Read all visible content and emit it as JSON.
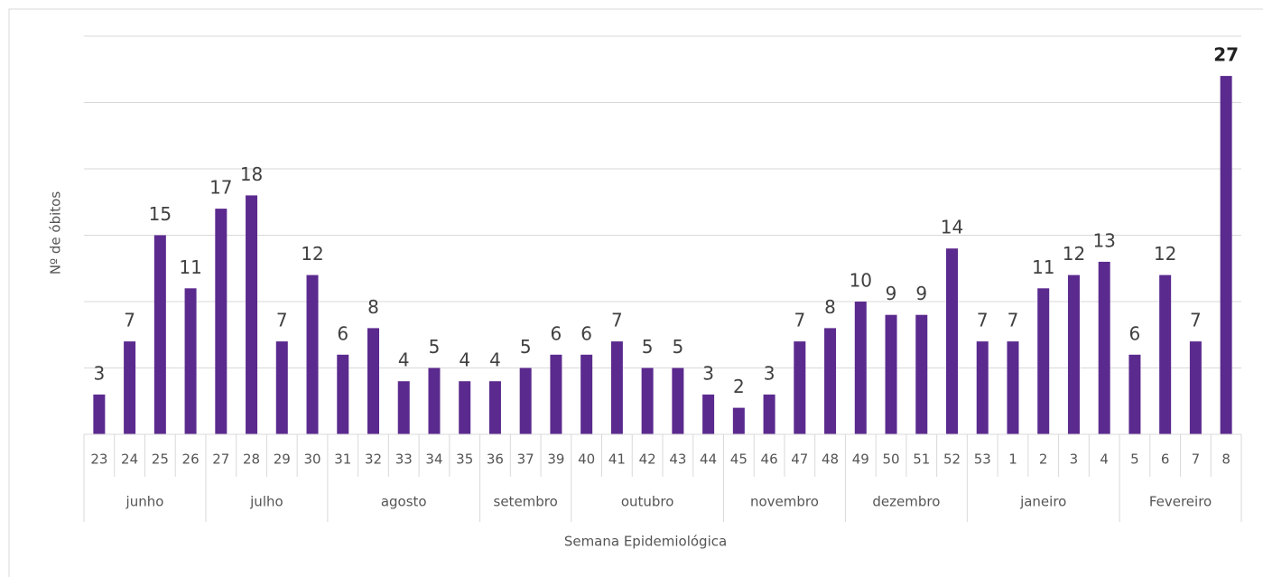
{
  "chart_data": {
    "type": "bar",
    "categories": [
      "23",
      "24",
      "25",
      "26",
      "27",
      "28",
      "29",
      "30",
      "31",
      "32",
      "33",
      "34",
      "35",
      "36",
      "37",
      "39",
      "40",
      "41",
      "42",
      "43",
      "44",
      "45",
      "46",
      "47",
      "48",
      "49",
      "50",
      "51",
      "52",
      "53",
      "1",
      "2",
      "3",
      "4",
      "5",
      "6",
      "7",
      "8"
    ],
    "values": [
      3,
      7,
      15,
      11,
      17,
      18,
      7,
      12,
      6,
      8,
      4,
      5,
      4,
      4,
      5,
      6,
      6,
      7,
      5,
      5,
      3,
      2,
      3,
      7,
      8,
      10,
      9,
      9,
      14,
      7,
      7,
      11,
      12,
      13,
      6,
      12,
      7,
      27
    ],
    "groups": [
      {
        "label": "junho",
        "count": 4
      },
      {
        "label": "julho",
        "count": 4
      },
      {
        "label": "agosto",
        "count": 5
      },
      {
        "label": "setembro",
        "count": 3
      },
      {
        "label": "outubro",
        "count": 5
      },
      {
        "label": "novembro",
        "count": 4
      },
      {
        "label": "dezembro",
        "count": 4
      },
      {
        "label": "janeiro",
        "count": 5
      },
      {
        "label": "Fevereiro",
        "count": 4
      }
    ],
    "color": "#5b2a8e",
    "ylim": [
      0,
      30
    ],
    "yticks": [
      0,
      5,
      10,
      15,
      20,
      25,
      30
    ],
    "grid": true,
    "bold_labels": [
      37
    ],
    "x_label": "Semana Epidemiológica",
    "y_label": "Nº de óbitos"
  }
}
